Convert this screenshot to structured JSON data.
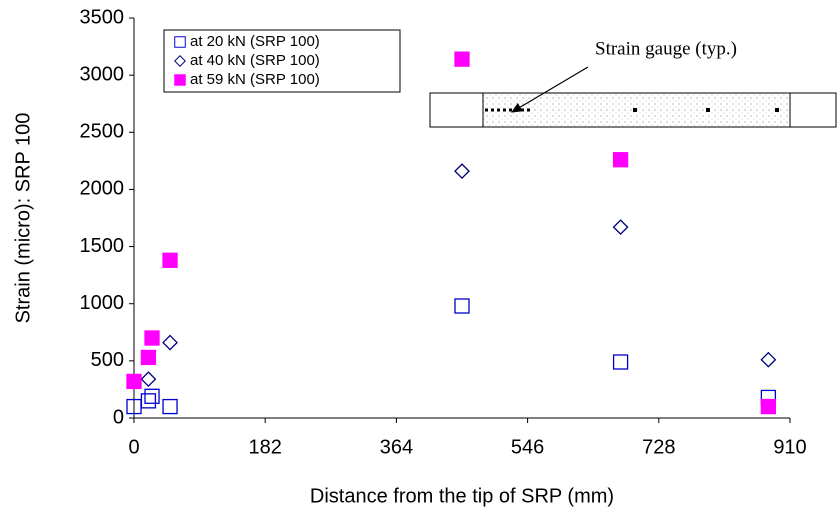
{
  "chart_data": {
    "type": "scatter",
    "x_label": "Distance from the tip of SRP (mm)",
    "y_label": "Strain (micro): SRP 100",
    "annotation": "Strain gauge (typ.)",
    "xlim": [
      0,
      910
    ],
    "xticks": [
      0,
      182,
      364,
      546,
      728,
      910
    ],
    "ylim": [
      0,
      3500
    ],
    "yticks": [
      0,
      500,
      1000,
      1500,
      2000,
      2500,
      3000,
      3500
    ],
    "legend": "upper left",
    "series": [
      {
        "name": "at 20 kN (SRP 100)",
        "color": "#0000cc",
        "marker": "open-square",
        "x": [
          0,
          20,
          25,
          50,
          455,
          675,
          880
        ],
        "values": [
          100,
          150,
          190,
          100,
          980,
          490,
          180
        ]
      },
      {
        "name": "at 40 kN (SRP 100)",
        "color": "#000080",
        "marker": "open-diamond",
        "x": [
          20,
          50,
          455,
          675,
          880
        ],
        "values": [
          340,
          660,
          2160,
          1670,
          510
        ]
      },
      {
        "name": "at 59 kN (SRP 100)",
        "color": "#ff00ff",
        "marker": "filled-square",
        "x": [
          0,
          20,
          25,
          50,
          455,
          675,
          880
        ],
        "values": [
          320,
          530,
          700,
          1380,
          3140,
          2260,
          100
        ]
      }
    ]
  }
}
